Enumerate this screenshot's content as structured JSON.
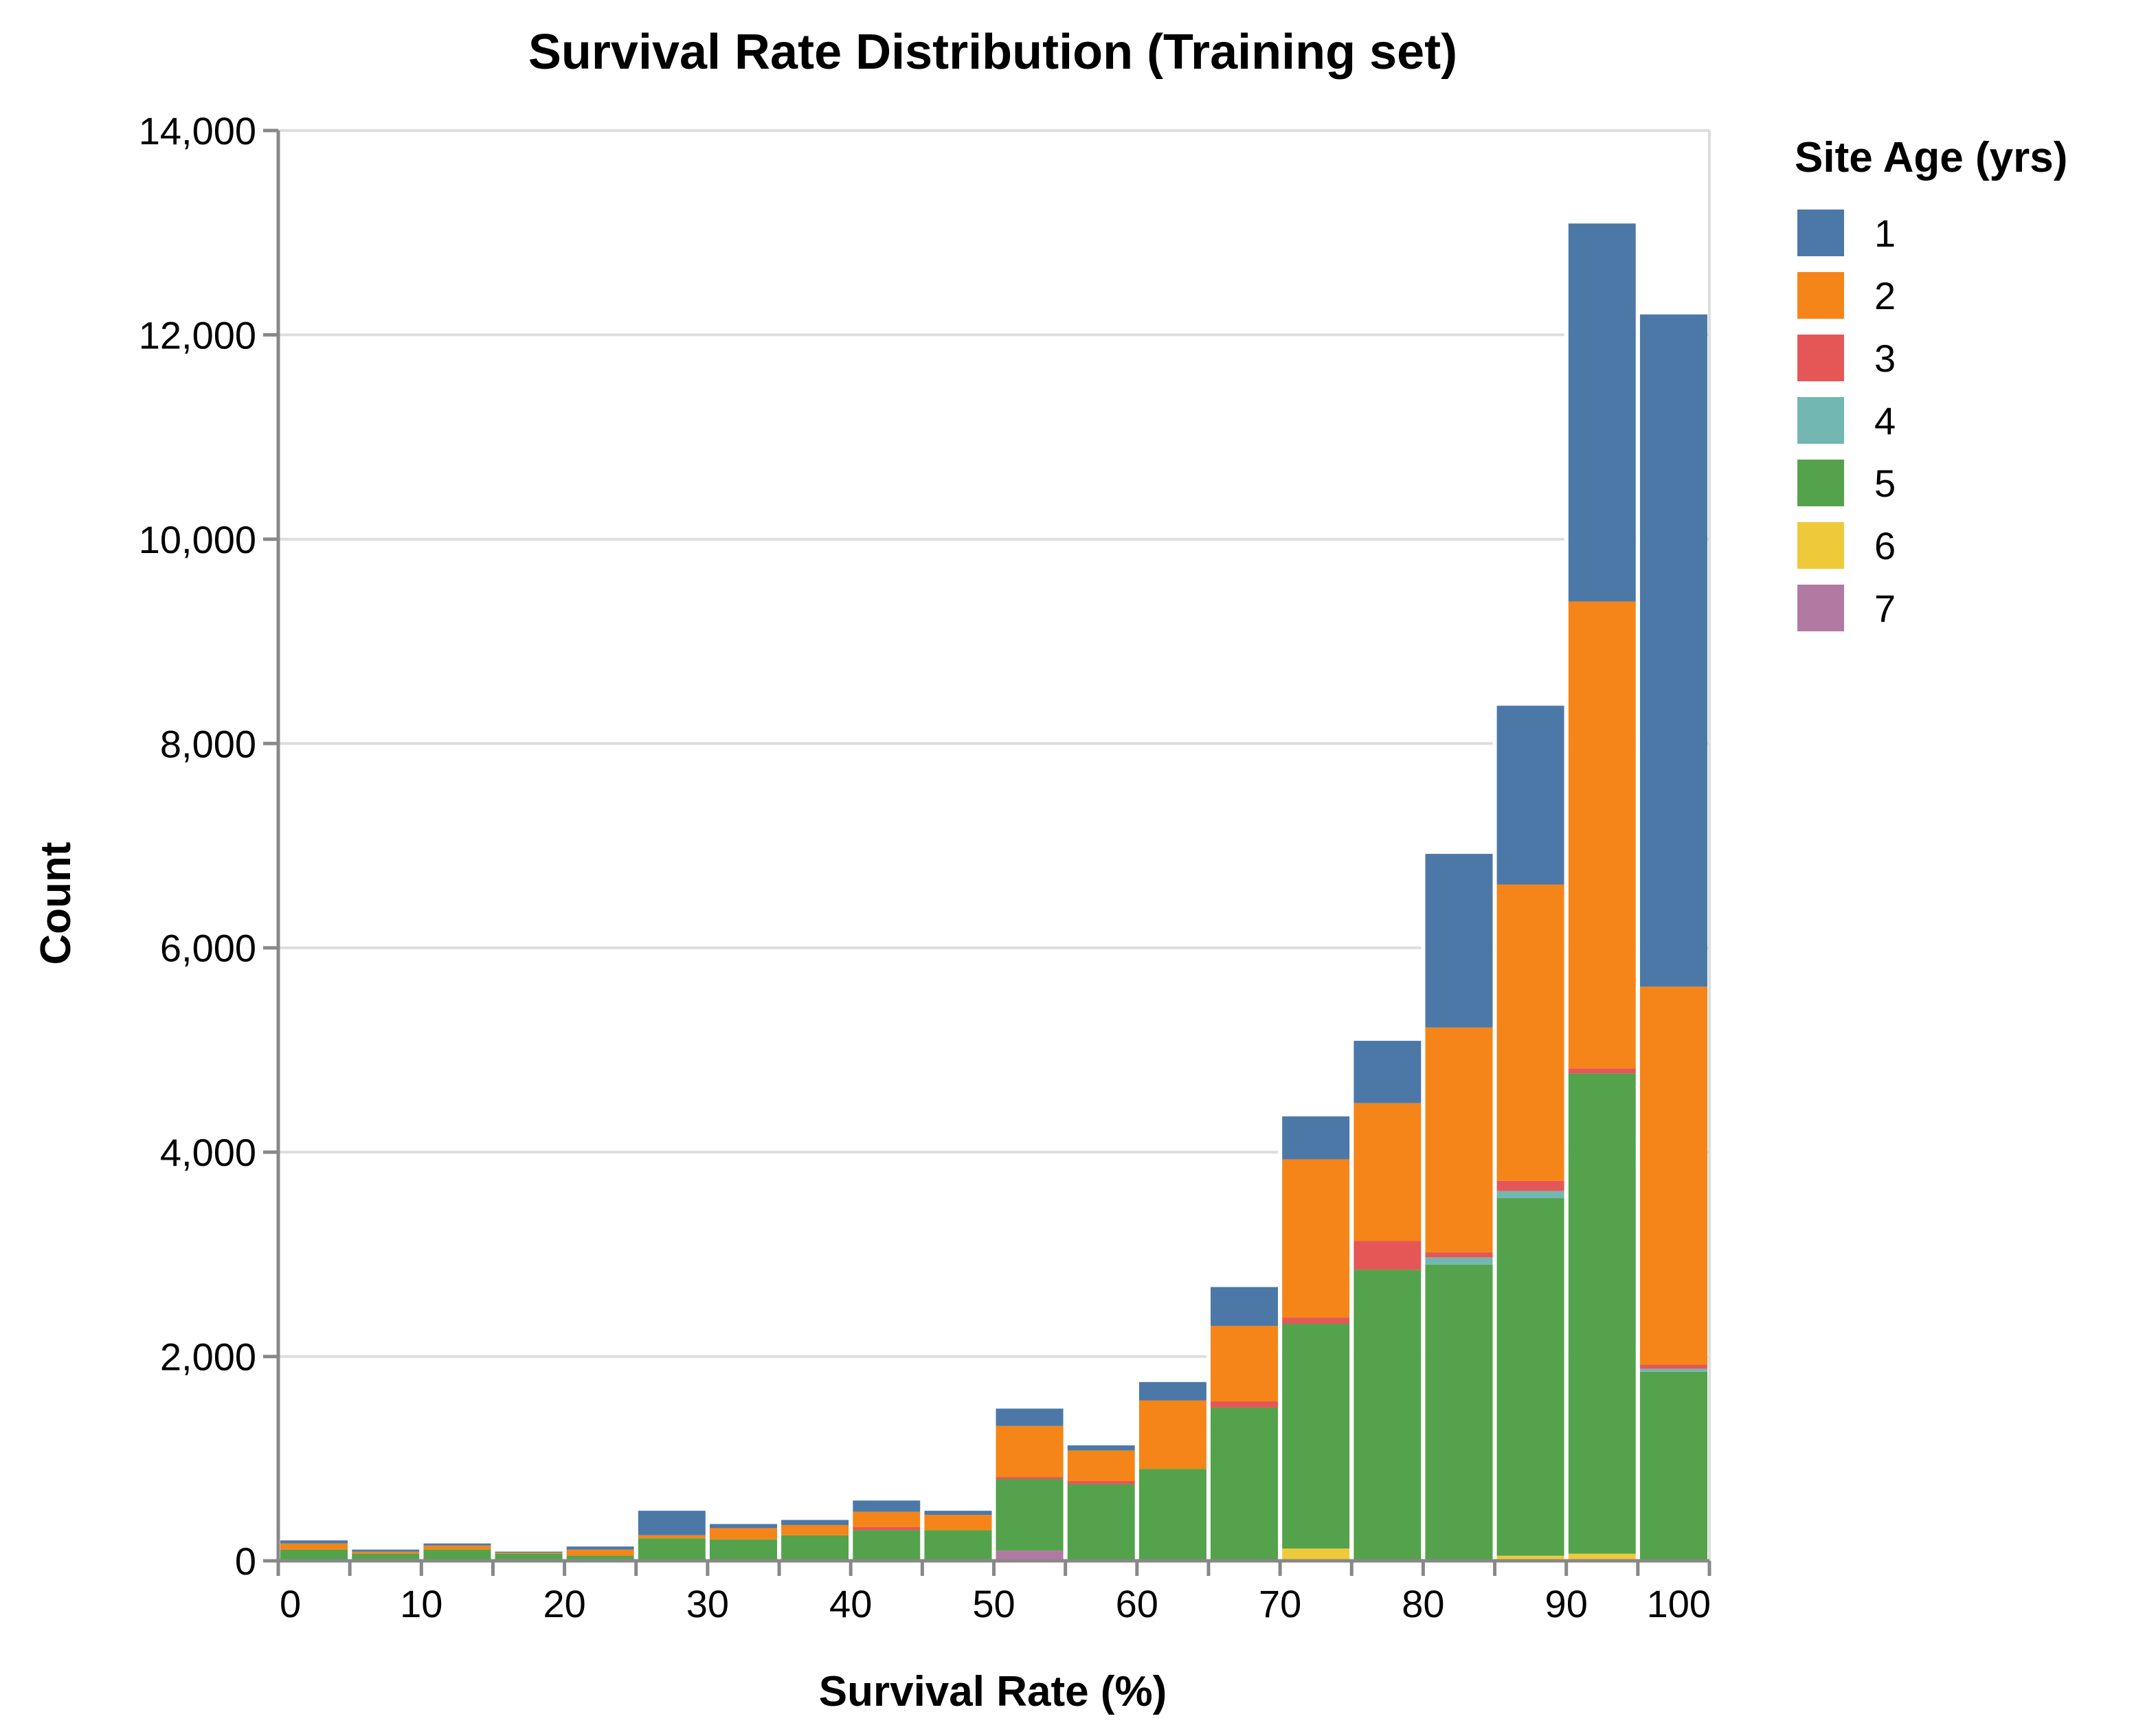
{
  "chart_data": {
    "type": "bar",
    "stacked": true,
    "title": "Survival Rate Distribution (Training set)",
    "xlabel": "Survival Rate (%)",
    "ylabel": "Count",
    "xlim": [
      0,
      100
    ],
    "ylim": [
      0,
      14000
    ],
    "bin_width": 5,
    "x_ticks": [
      0,
      10,
      20,
      30,
      40,
      50,
      60,
      70,
      80,
      90,
      100
    ],
    "y_ticks": [
      0,
      2000,
      4000,
      6000,
      8000,
      10000,
      12000,
      14000
    ],
    "y_tick_labels": [
      "0",
      "2,000",
      "4,000",
      "6,000",
      "8,000",
      "10,000",
      "12,000",
      "14,000"
    ],
    "grid": true,
    "legend_title": "Site Age (yrs)",
    "legend_position": "right",
    "bins": [
      0,
      5,
      10,
      15,
      20,
      25,
      30,
      35,
      40,
      45,
      50,
      55,
      60,
      65,
      70,
      75,
      80,
      85,
      90,
      95
    ],
    "series": [
      {
        "name": "7",
        "color": "#b279a2",
        "values": [
          0,
          0,
          0,
          0,
          0,
          0,
          0,
          0,
          0,
          0,
          100,
          0,
          0,
          0,
          0,
          0,
          0,
          0,
          0,
          0
        ]
      },
      {
        "name": "6",
        "color": "#eeca3b",
        "values": [
          0,
          0,
          0,
          0,
          0,
          0,
          0,
          0,
          0,
          0,
          0,
          0,
          0,
          0,
          120,
          0,
          0,
          50,
          70,
          0
        ]
      },
      {
        "name": "5",
        "color": "#54a24b",
        "values": [
          110,
          70,
          110,
          70,
          50,
          220,
          210,
          250,
          300,
          300,
          700,
          750,
          900,
          1500,
          2200,
          2850,
          2900,
          3500,
          4700,
          1850
        ]
      },
      {
        "name": "4",
        "color": "#72b7b2",
        "values": [
          0,
          0,
          0,
          0,
          0,
          0,
          0,
          0,
          0,
          0,
          0,
          0,
          0,
          0,
          0,
          0,
          70,
          70,
          0,
          30
        ]
      },
      {
        "name": "3",
        "color": "#e45756",
        "values": [
          0,
          0,
          0,
          0,
          0,
          0,
          0,
          0,
          30,
          0,
          20,
          30,
          0,
          60,
          60,
          280,
          50,
          100,
          50,
          40
        ]
      },
      {
        "name": "2",
        "color": "#f58518",
        "values": [
          60,
          20,
          40,
          10,
          60,
          30,
          110,
          100,
          150,
          150,
          500,
          300,
          670,
          740,
          1550,
          1350,
          2200,
          2900,
          4570,
          3700
        ]
      },
      {
        "name": "1",
        "color": "#4c78a8",
        "values": [
          30,
          20,
          20,
          10,
          30,
          240,
          40,
          50,
          110,
          40,
          170,
          50,
          180,
          380,
          420,
          610,
          1700,
          1750,
          3700,
          6580
        ]
      }
    ],
    "legend_order": [
      "1",
      "2",
      "3",
      "4",
      "5",
      "6",
      "7"
    ]
  },
  "colors": {
    "grid": "#dddddd",
    "axis": "#888888",
    "background": "#ffffff"
  }
}
